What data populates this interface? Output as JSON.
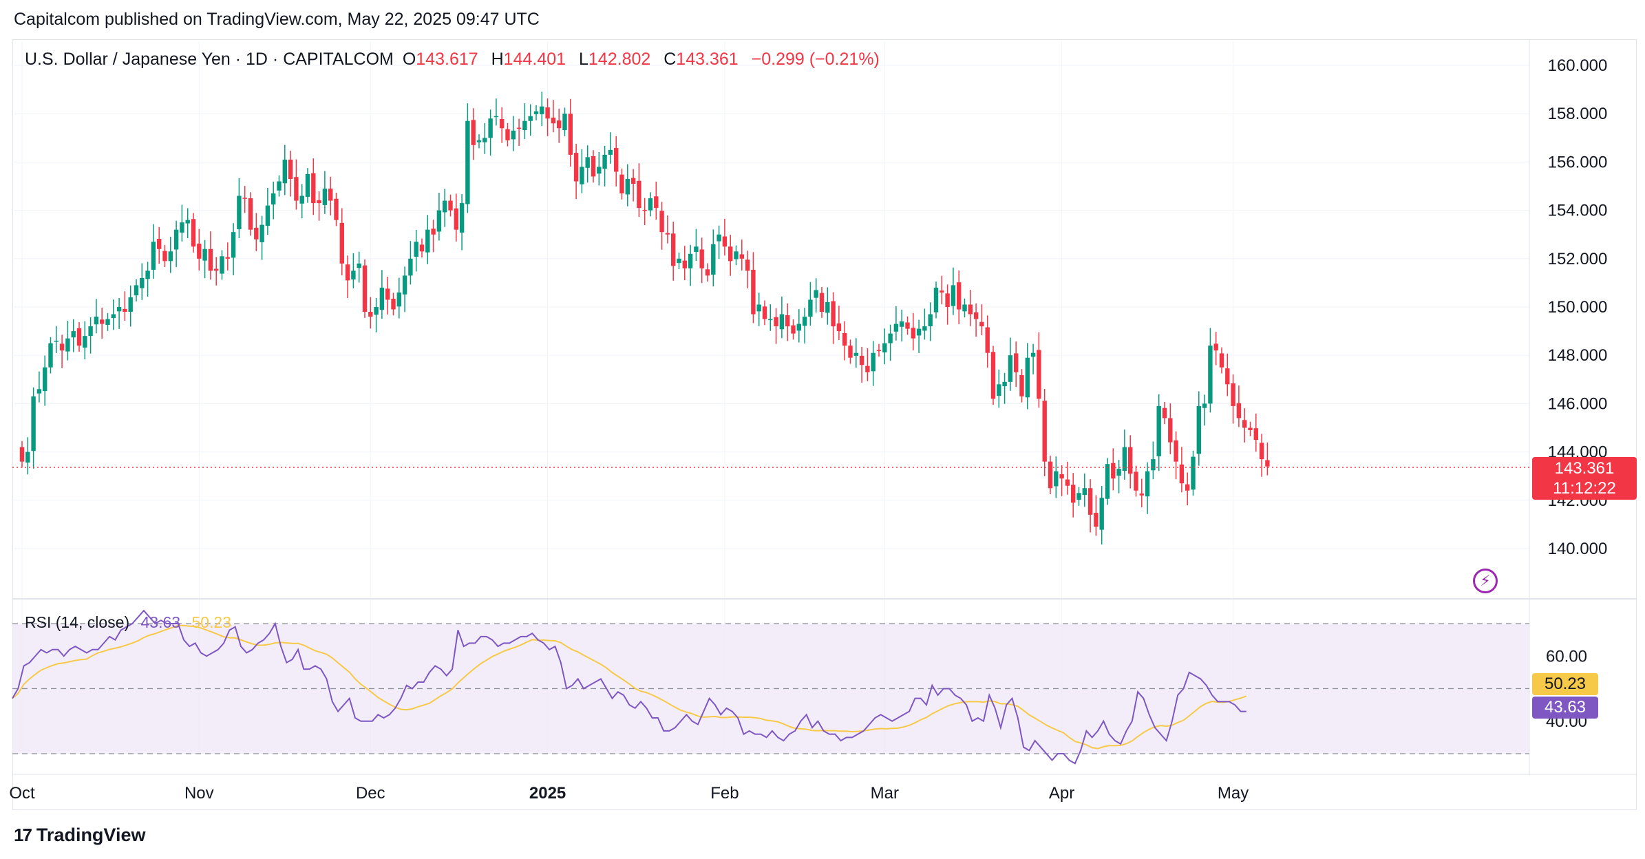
{
  "header": {
    "published": "Capitalcom published on TradingView.com, May 22, 2025 09:47 UTC"
  },
  "legend": {
    "symbol": "U.S. Dollar / Japanese Yen · 1D · CAPITALCOM",
    "o_label": "O",
    "o_value": "143.617",
    "h_label": "H",
    "h_value": "144.401",
    "l_label": "L",
    "l_value": "142.802",
    "c_label": "C",
    "c_value": "143.361",
    "change": "−0.299 (−0.21%)"
  },
  "price_tag": {
    "price": "143.361",
    "countdown": "11:12:22"
  },
  "rsi": {
    "label": "RSI (14, close)",
    "value": "43.63",
    "ma_value": "50.23",
    "ticks": [
      "60.00",
      "40.00"
    ],
    "bands": [
      70,
      50,
      30
    ]
  },
  "brand": {
    "name": "TradingView"
  },
  "colors": {
    "up": "#089981",
    "down": "#f23645",
    "rsi": "#7e57c2",
    "rsi_ma": "#f7c948",
    "band_fill": "#ede7f6"
  },
  "chart_data": {
    "type": "candlestick",
    "title": "U.S. Dollar / Japanese Yen · 1D · CAPITALCOM",
    "y_ticks": [
      "160.000",
      "158.000",
      "156.000",
      "154.000",
      "152.000",
      "150.000",
      "148.000",
      "146.000",
      "144.000",
      "142.000",
      "140.000"
    ],
    "ylim": [
      138.0,
      160.6
    ],
    "x_labels": [
      {
        "label": "Oct",
        "day": 0,
        "bold": false
      },
      {
        "label": "Nov",
        "day": 31,
        "bold": false
      },
      {
        "label": "Dec",
        "day": 61,
        "bold": false
      },
      {
        "label": "2025",
        "day": 92,
        "bold": true
      },
      {
        "label": "Feb",
        "day": 123,
        "bold": false
      },
      {
        "label": "Mar",
        "day": 151,
        "bold": false
      },
      {
        "label": "Apr",
        "day": 182,
        "bold": false
      },
      {
        "label": "May",
        "day": 212,
        "bold": false
      }
    ],
    "last_close": 143.361,
    "closes": [
      143.6,
      144.0,
      146.3,
      146.6,
      147.5,
      148.5,
      148.6,
      148.2,
      148.7,
      149.0,
      148.4,
      148.8,
      149.2,
      149.6,
      149.3,
      149.5,
      149.7,
      150.0,
      149.8,
      150.4,
      150.9,
      151.2,
      151.5,
      152.7,
      152.4,
      151.9,
      152.3,
      153.2,
      153.5,
      153.6,
      152.5,
      152.0,
      152.4,
      151.5,
      151.5,
      152.1,
      152.0,
      153.1,
      154.6,
      154.5,
      153.2,
      152.8,
      153.4,
      154.2,
      154.7,
      155.2,
      156.1,
      155.3,
      154.4,
      154.6,
      155.5,
      154.3,
      154.3,
      154.9,
      154.4,
      153.6,
      151.8,
      151.1,
      151.5,
      151.8,
      149.8,
      149.6,
      150.0,
      150.8,
      150.3,
      149.9,
      150.6,
      151.3,
      152.0,
      152.7,
      152.3,
      153.2,
      153.0,
      154.0,
      154.4,
      154.0,
      153.2,
      154.3,
      157.7,
      156.7,
      156.9,
      157.0,
      157.8,
      157.9,
      157.4,
      156.9,
      157.3,
      157.4,
      157.7,
      157.9,
      158.1,
      158.3,
      157.8,
      157.6,
      157.4,
      158.0,
      156.3,
      155.2,
      155.8,
      156.2,
      155.4,
      155.8,
      156.3,
      156.5,
      155.6,
      154.7,
      155.3,
      155.1,
      154.1,
      154.0,
      154.5,
      154.1,
      153.1,
      153.0,
      151.7,
      152.0,
      151.6,
      152.2,
      152.5,
      151.6,
      151.3,
      152.6,
      153.0,
      152.5,
      151.9,
      152.3,
      152.0,
      151.5,
      149.7,
      150.1,
      149.5,
      149.5,
      149.2,
      149.7,
      149.2,
      148.9,
      149.3,
      149.6,
      150.3,
      150.7,
      149.8,
      150.2,
      149.2,
      149.0,
      148.4,
      147.9,
      148.1,
      147.6,
      147.3,
      148.1,
      148.2,
      148.5,
      148.9,
      149.3,
      149.4,
      149.1,
      148.7,
      149.1,
      149.2,
      149.7,
      150.8,
      150.6,
      150.0,
      150.9,
      149.9,
      150.1,
      149.7,
      149.5,
      149.2,
      148.1,
      146.2,
      146.8,
      146.9,
      148.0,
      147.3,
      146.3,
      147.9,
      148.1,
      146.2,
      143.6,
      142.5,
      143.2,
      142.9,
      142.6,
      141.9,
      142.3,
      142.5,
      141.4,
      140.9,
      142.1,
      143.5,
      142.9,
      143.3,
      144.2,
      143.1,
      142.4,
      142.2,
      143.2,
      143.7,
      145.9,
      145.4,
      144.4,
      143.6,
      142.7,
      142.4,
      143.8,
      145.9,
      146.0,
      148.4,
      148.2,
      147.5,
      146.8,
      145.9,
      145.4,
      145.0,
      144.9,
      144.5,
      143.7,
      143.4
    ],
    "rsi_values": [
      47,
      50,
      57,
      58,
      60,
      62,
      61,
      62,
      62,
      60,
      62,
      63,
      62,
      61,
      62,
      62,
      64,
      66,
      65,
      68,
      69,
      70,
      72,
      74,
      72,
      70,
      71,
      70,
      70,
      70,
      65,
      63,
      64,
      61,
      60,
      61,
      62,
      64,
      68,
      69,
      63,
      61,
      62,
      64,
      65,
      67,
      70,
      63,
      58,
      59,
      62,
      56,
      56,
      57,
      56,
      53,
      46,
      43,
      45,
      47,
      41,
      40,
      40,
      40,
      42,
      41,
      42,
      44,
      47,
      51,
      50,
      52,
      52,
      55,
      57,
      56,
      54,
      56,
      68,
      63,
      64,
      64,
      66,
      66,
      65,
      63,
      64,
      64,
      65,
      66,
      66,
      67,
      65,
      64,
      62,
      63,
      58,
      50,
      51,
      53,
      50,
      51,
      52,
      53,
      50,
      47,
      49,
      48,
      45,
      44,
      46,
      44,
      41,
      41,
      37,
      37,
      38,
      40,
      42,
      40,
      39,
      43,
      47,
      45,
      42,
      44,
      43,
      41,
      36,
      37,
      36,
      36,
      35,
      37,
      35,
      34,
      36,
      37,
      40,
      42,
      38,
      40,
      37,
      36,
      36,
      34,
      35,
      35,
      36,
      37,
      39,
      41,
      42,
      41,
      40,
      41,
      42,
      43,
      47,
      47,
      45,
      51,
      48,
      50,
      50,
      48,
      47,
      45,
      40,
      41,
      40,
      48,
      44,
      38,
      45,
      47,
      41,
      32,
      31,
      34,
      32,
      30,
      28,
      30,
      30,
      28,
      27,
      31,
      37,
      35,
      37,
      40,
      36,
      34,
      33,
      37,
      40,
      49,
      47,
      42,
      38,
      36,
      34,
      40,
      48,
      50,
      55,
      54,
      53,
      51,
      48,
      46,
      46,
      46,
      45,
      43,
      43
    ]
  }
}
